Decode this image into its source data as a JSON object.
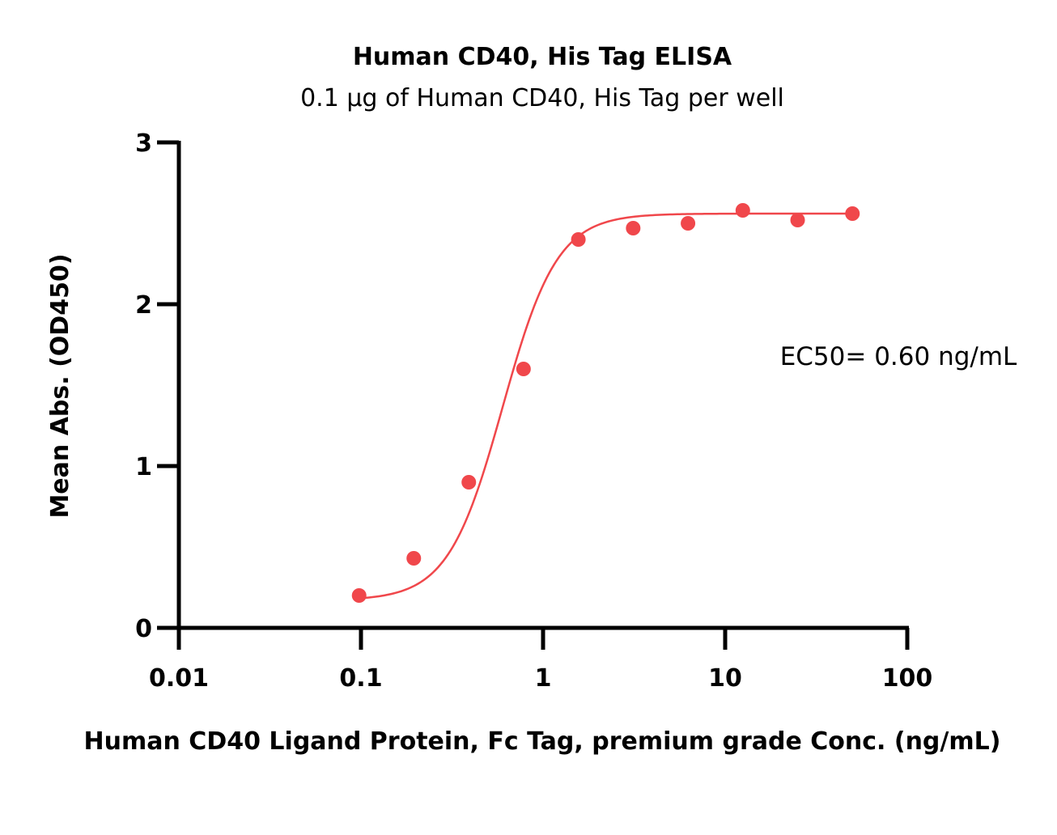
{
  "chart_data": {
    "type": "scatter",
    "title": "Human CD40, His Tag ELISA",
    "subtitle": "0.1 μg of Human CD40, His Tag per well",
    "xlabel": "Human CD40 Ligand Protein, Fc Tag, premium grade Conc. (ng/mL)",
    "ylabel": "Mean Abs. (OD450)",
    "xscale": "log",
    "xlim": [
      0.01,
      100
    ],
    "ylim": [
      0,
      3
    ],
    "xticks": [
      "0.01",
      "0.1",
      "1",
      "10",
      "100"
    ],
    "yticks": [
      "0",
      "1",
      "2",
      "3"
    ],
    "grid": false,
    "series": [
      {
        "x": [
          0.0977,
          0.195,
          0.391,
          0.781,
          1.5625,
          3.125,
          6.25,
          12.5,
          25,
          50
        ],
        "y": [
          0.2,
          0.43,
          0.9,
          1.6,
          2.4,
          2.47,
          2.5,
          2.58,
          2.52,
          2.56
        ],
        "color": "#f0474b",
        "fit": "4PL sigmoidal"
      }
    ],
    "fit_params": {
      "bottom": 0.17,
      "top": 2.56,
      "ec50": 0.6,
      "hill": 2.9
    },
    "annotations": [
      "EC50= 0.60 ng/mL"
    ]
  }
}
